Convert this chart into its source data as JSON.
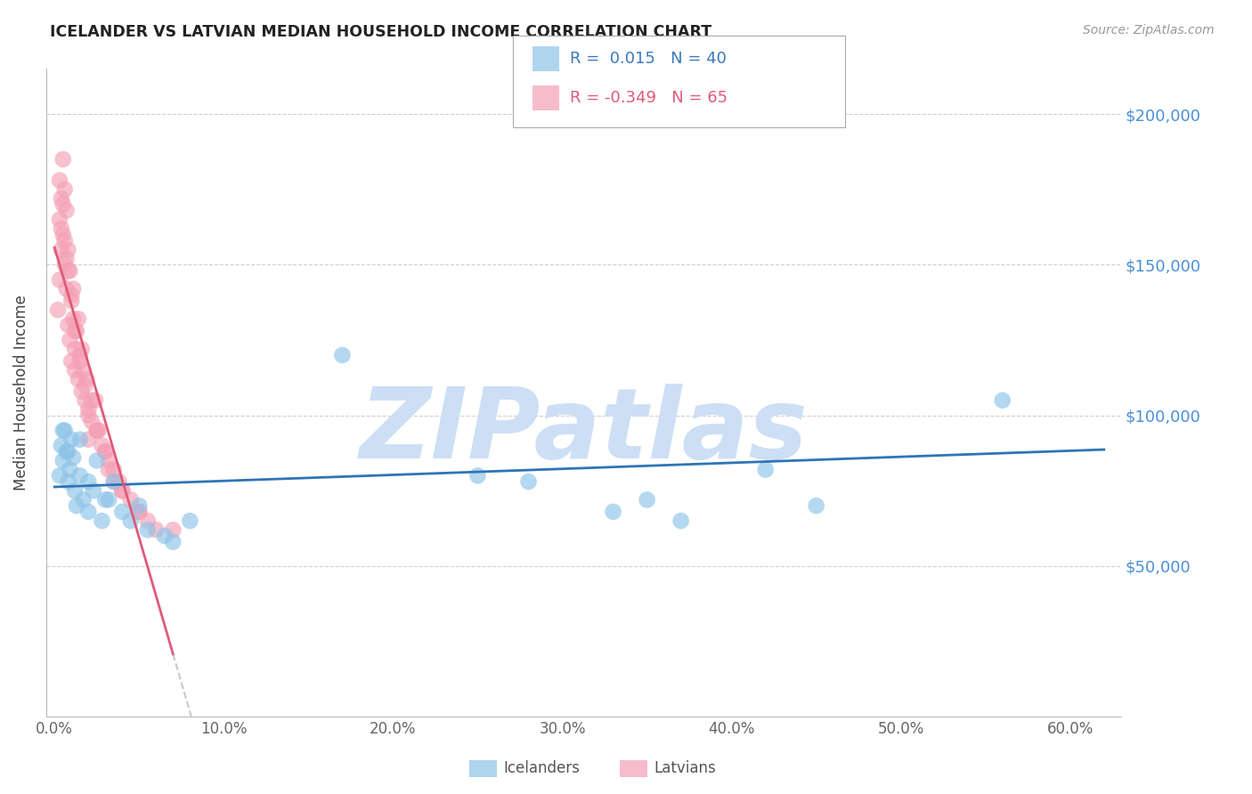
{
  "title": "ICELANDER VS LATVIAN MEDIAN HOUSEHOLD INCOME CORRELATION CHART",
  "source": "Source: ZipAtlas.com",
  "ylabel": "Median Household Income",
  "xlabel_vals": [
    0.0,
    10.0,
    20.0,
    30.0,
    40.0,
    50.0,
    60.0
  ],
  "ytick_vals": [
    0,
    50000,
    100000,
    150000,
    200000
  ],
  "ytick_labels": [
    "",
    "$50,000",
    "$100,000",
    "$150,000",
    "$200,000"
  ],
  "xlim": [
    -0.5,
    63.0
  ],
  "ylim": [
    5000,
    215000
  ],
  "icelander_color": "#8dc3e8",
  "latvian_color": "#f4a0b5",
  "icelander_line_color": "#2e75b6",
  "latvian_line_color": "#e05a78",
  "legend_R_ice": "0.015",
  "legend_N_ice": "40",
  "legend_R_lat": "-0.349",
  "legend_N_lat": "65",
  "watermark": "ZIPatlas",
  "watermark_color": "#ccdff5",
  "icelander_x": [
    0.3,
    0.4,
    0.5,
    0.6,
    0.7,
    0.8,
    0.9,
    1.0,
    1.1,
    1.2,
    1.3,
    1.5,
    1.7,
    2.0,
    2.3,
    2.5,
    2.8,
    3.2,
    3.5,
    4.0,
    4.5,
    5.0,
    5.5,
    6.5,
    7.0,
    8.0,
    17.0,
    25.0,
    28.0,
    33.0,
    35.0,
    37.0,
    42.0,
    45.0,
    56.0,
    0.5,
    0.8,
    1.5,
    2.0,
    3.0
  ],
  "icelander_y": [
    80000,
    90000,
    85000,
    95000,
    88000,
    78000,
    82000,
    92000,
    86000,
    75000,
    70000,
    80000,
    72000,
    68000,
    75000,
    85000,
    65000,
    72000,
    78000,
    68000,
    65000,
    70000,
    62000,
    60000,
    58000,
    65000,
    120000,
    80000,
    78000,
    68000,
    72000,
    65000,
    82000,
    70000,
    105000,
    95000,
    88000,
    92000,
    78000,
    72000
  ],
  "latvian_x": [
    0.2,
    0.3,
    0.3,
    0.4,
    0.4,
    0.5,
    0.5,
    0.6,
    0.6,
    0.7,
    0.7,
    0.8,
    0.8,
    0.9,
    0.9,
    1.0,
    1.0,
    1.1,
    1.2,
    1.2,
    1.3,
    1.4,
    1.5,
    1.6,
    1.7,
    1.8,
    2.0,
    2.0,
    2.2,
    2.4,
    2.5,
    2.8,
    3.0,
    3.2,
    3.5,
    4.0,
    4.5,
    5.0,
    5.5,
    6.0,
    0.3,
    0.5,
    0.6,
    0.8,
    1.0,
    1.2,
    1.5,
    1.8,
    2.0,
    2.5,
    3.0,
    3.5,
    4.0,
    5.0,
    7.0,
    0.4,
    0.7,
    1.1,
    1.4,
    1.6,
    1.9,
    2.2,
    2.6,
    3.2,
    3.8
  ],
  "latvian_y": [
    135000,
    165000,
    145000,
    172000,
    155000,
    185000,
    160000,
    175000,
    150000,
    168000,
    142000,
    155000,
    130000,
    148000,
    125000,
    140000,
    118000,
    132000,
    122000,
    115000,
    128000,
    112000,
    120000,
    108000,
    115000,
    105000,
    100000,
    92000,
    98000,
    105000,
    95000,
    90000,
    88000,
    82000,
    78000,
    75000,
    72000,
    68000,
    65000,
    62000,
    178000,
    170000,
    158000,
    148000,
    138000,
    128000,
    118000,
    110000,
    102000,
    95000,
    88000,
    82000,
    75000,
    68000,
    62000,
    162000,
    152000,
    142000,
    132000,
    122000,
    112000,
    105000,
    95000,
    85000,
    78000
  ]
}
